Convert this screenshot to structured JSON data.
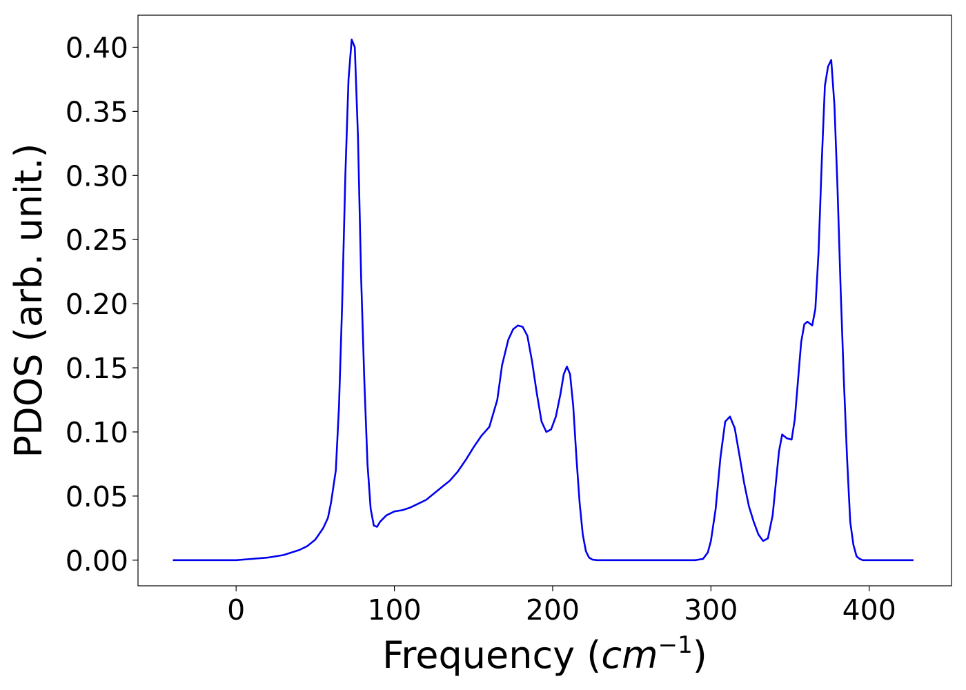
{
  "chart_data": {
    "type": "line",
    "title": "",
    "xlabel": {
      "prefix": "Frequency (",
      "unit": "cm",
      "exponent": "−1",
      "suffix": ")"
    },
    "ylabel": "PDOS (arb. unit.)",
    "xlim": [
      -62,
      452
    ],
    "ylim": [
      -0.02,
      0.425
    ],
    "xticks": [
      0,
      100,
      200,
      300,
      400
    ],
    "xtick_labels": [
      "0",
      "100",
      "200",
      "300",
      "400"
    ],
    "yticks": [
      0.0,
      0.05,
      0.1,
      0.15,
      0.2,
      0.25,
      0.3,
      0.35,
      0.4
    ],
    "ytick_labels": [
      "0.00",
      "0.05",
      "0.10",
      "0.15",
      "0.20",
      "0.25",
      "0.30",
      "0.35",
      "0.40"
    ],
    "grid": false,
    "legend": "none",
    "series": [
      {
        "color": "#0000ee",
        "x": [
          -40,
          0,
          10,
          20,
          30,
          40,
          45,
          50,
          55,
          58,
          60,
          63,
          65,
          67,
          69,
          71,
          73,
          75,
          77,
          79,
          81,
          83,
          85,
          87,
          89,
          91,
          95,
          100,
          105,
          110,
          115,
          120,
          125,
          130,
          135,
          140,
          145,
          150,
          155,
          160,
          165,
          168,
          172,
          175,
          178,
          181,
          184,
          187,
          190,
          193,
          196,
          199,
          202,
          205,
          207,
          209,
          211,
          213,
          215,
          217,
          219,
          221,
          223,
          225,
          228,
          235,
          260,
          290,
          295,
          298,
          300,
          303,
          306,
          309,
          312,
          315,
          318,
          321,
          324,
          327,
          330,
          333,
          336,
          339,
          341,
          343,
          345,
          348,
          351,
          353,
          355,
          357,
          359,
          361,
          364,
          366,
          368,
          370,
          372,
          374,
          376,
          378,
          380,
          382,
          384,
          386,
          388,
          390,
          392,
          394,
          396,
          398,
          400,
          405,
          428
        ],
        "y": [
          0.0,
          0.0,
          0.001,
          0.002,
          0.004,
          0.008,
          0.011,
          0.016,
          0.025,
          0.033,
          0.045,
          0.07,
          0.12,
          0.2,
          0.3,
          0.375,
          0.406,
          0.4,
          0.33,
          0.22,
          0.14,
          0.075,
          0.04,
          0.027,
          0.026,
          0.03,
          0.035,
          0.038,
          0.039,
          0.041,
          0.044,
          0.047,
          0.052,
          0.057,
          0.062,
          0.069,
          0.078,
          0.088,
          0.097,
          0.104,
          0.125,
          0.152,
          0.172,
          0.18,
          0.183,
          0.182,
          0.175,
          0.155,
          0.13,
          0.108,
          0.1,
          0.102,
          0.112,
          0.13,
          0.145,
          0.151,
          0.145,
          0.12,
          0.08,
          0.045,
          0.02,
          0.007,
          0.002,
          0.0005,
          0.0,
          0.0,
          0.0,
          0.0,
          0.001,
          0.006,
          0.015,
          0.04,
          0.08,
          0.108,
          0.112,
          0.103,
          0.082,
          0.06,
          0.042,
          0.03,
          0.02,
          0.015,
          0.017,
          0.035,
          0.06,
          0.085,
          0.098,
          0.095,
          0.094,
          0.11,
          0.14,
          0.17,
          0.184,
          0.186,
          0.183,
          0.196,
          0.24,
          0.31,
          0.37,
          0.385,
          0.39,
          0.355,
          0.29,
          0.21,
          0.14,
          0.08,
          0.03,
          0.012,
          0.003,
          0.001,
          0.0,
          0.0,
          0.0,
          0.0,
          0.0
        ]
      }
    ]
  }
}
